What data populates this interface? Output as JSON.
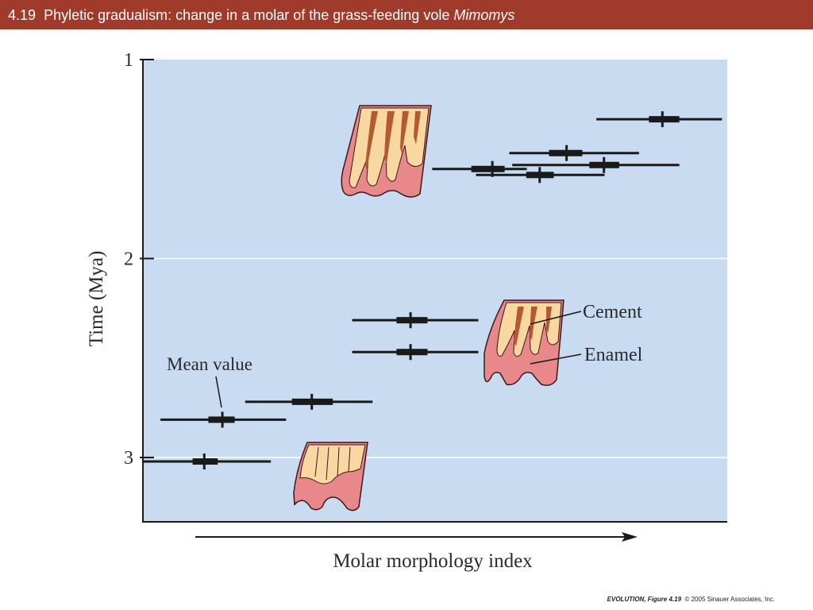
{
  "title": {
    "number": "4.19",
    "text": "Phyletic gradualism: change in a molar of the grass-feeding vole",
    "genus": "Mimomys"
  },
  "credit": {
    "book": "EVOLUTION,",
    "figure": "Figure 4.19",
    "copyright": "© 2005 Sinauer Associates, Inc."
  },
  "colors": {
    "titlebar": "#a03a2a",
    "plot_background": "#c8dbf0",
    "bars": "#1a1a1a",
    "enamel": "#e8888a",
    "cement": "#f8d8a0",
    "dentine": "#b55a30"
  },
  "chart_data": {
    "type": "scatter",
    "title": "",
    "xlabel": "Molar morphology index",
    "ylabel": "Time (Mya)",
    "ylim": [
      1,
      3.32
    ],
    "yticks": [
      1,
      2,
      3
    ],
    "y_inverted": true,
    "x_ticks_shown": false,
    "xlim": [
      0,
      100
    ],
    "grid": "horizontal lines at ticks",
    "series": [
      {
        "points": [
          {
            "y": 3.02,
            "mean": 10.5,
            "range": [
              0,
              21.9
            ],
            "box": [
              8.5,
              12.8
            ]
          },
          {
            "y": 2.81,
            "mean": 13.6,
            "range": [
              3,
              24.5
            ],
            "box": [
              11.2,
              15.7
            ]
          },
          {
            "y": 2.72,
            "mean": 28.9,
            "range": [
              17.5,
              39.3
            ],
            "box": [
              25.5,
              32.5
            ]
          },
          {
            "y": 2.47,
            "mean": 45.8,
            "range": [
              35.8,
              57.4
            ],
            "box": [
              43.4,
              48.7
            ]
          },
          {
            "y": 2.31,
            "mean": 45.8,
            "range": [
              35.8,
              57.4
            ],
            "box": [
              43.4,
              48.7
            ]
          },
          {
            "y": 1.55,
            "mean": 59.8,
            "range": [
              49.5,
              65.7
            ],
            "box": [
              56.2,
              61.9
            ]
          },
          {
            "y": 1.58,
            "mean": 67.9,
            "range": [
              57,
              79
            ],
            "box": [
              65.6,
              70.3
            ]
          },
          {
            "y": 1.53,
            "mean": 78.9,
            "range": [
              63.2,
              91.8
            ],
            "box": [
              76.4,
              81.5
            ]
          },
          {
            "y": 1.47,
            "mean": 72.5,
            "range": [
              62.7,
              84.9
            ],
            "box": [
              69.5,
              75.2
            ]
          },
          {
            "y": 1.3,
            "mean": 88.9,
            "range": [
              77.6,
              99.1
            ],
            "box": [
              86.6,
              91.8
            ]
          }
        ]
      }
    ],
    "annotations": [
      "Mean value",
      "Cement",
      "Enamel"
    ]
  }
}
